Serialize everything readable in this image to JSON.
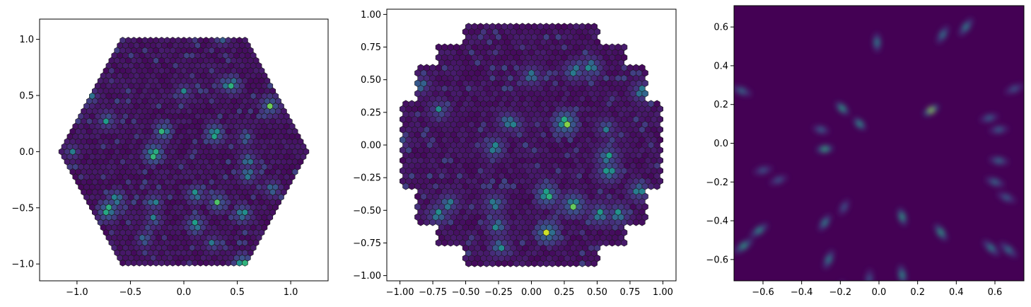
{
  "chart_data": [
    {
      "type": "hexbin",
      "layout": "hexagon",
      "xlim": [
        -1.35,
        1.35
      ],
      "ylim": [
        -1.15,
        1.18
      ],
      "xticks": [
        -1.0,
        -0.5,
        0.0,
        0.5,
        1.0
      ],
      "xtick_labels": [
        "−1.0",
        "−0.5",
        "0.0",
        "0.5",
        "1.0"
      ],
      "yticks": [
        -1.0,
        -0.5,
        0.0,
        0.5,
        1.0
      ],
      "ytick_labels": [
        "−1.0",
        "−0.5",
        "0.0",
        "0.5",
        "1.0"
      ],
      "colormap": "viridis",
      "grid": false,
      "hotspots": [
        {
          "x": -0.28,
          "y": -0.02,
          "v": 1.0
        },
        {
          "x": -0.71,
          "y": -0.52,
          "v": 0.95
        },
        {
          "x": 0.55,
          "y": -1.0,
          "v": 0.92
        },
        {
          "x": 0.29,
          "y": 0.16,
          "v": 0.85
        },
        {
          "x": -0.19,
          "y": 0.18,
          "v": 0.8
        },
        {
          "x": 0.81,
          "y": 0.41,
          "v": 0.8
        },
        {
          "x": 0.45,
          "y": 0.6,
          "v": 0.75
        },
        {
          "x": 0.32,
          "y": -0.45,
          "v": 0.75
        },
        {
          "x": 0.11,
          "y": -0.65,
          "v": 0.72
        },
        {
          "x": 0.55,
          "y": -0.55,
          "v": 0.7
        },
        {
          "x": -0.63,
          "y": -0.42,
          "v": 0.65
        },
        {
          "x": 0.11,
          "y": -0.38,
          "v": 0.65
        },
        {
          "x": -0.72,
          "y": 0.28,
          "v": 0.6
        },
        {
          "x": 0.6,
          "y": -0.2,
          "v": 0.6
        },
        {
          "x": -0.28,
          "y": -0.45,
          "v": 0.55
        },
        {
          "x": 0.36,
          "y": 1.02,
          "v": 0.5
        },
        {
          "x": 0.0,
          "y": 0.53,
          "v": 0.5
        },
        {
          "x": 0.6,
          "y": -0.08,
          "v": 0.55
        },
        {
          "x": -0.88,
          "y": 0.49,
          "v": 0.5
        },
        {
          "x": -1.05,
          "y": 0.0,
          "v": 0.45
        },
        {
          "x": -0.28,
          "y": -0.6,
          "v": 0.5
        },
        {
          "x": 0.83,
          "y": -0.33,
          "v": 0.5
        },
        {
          "x": 0.27,
          "y": -0.82,
          "v": 0.45
        },
        {
          "x": -0.72,
          "y": -0.88,
          "v": 0.45
        },
        {
          "x": 0.38,
          "y": 0.6,
          "v": 0.45
        },
        {
          "x": 0.58,
          "y": 0.12,
          "v": 0.45
        },
        {
          "x": -0.37,
          "y": -0.78,
          "v": 0.45
        }
      ]
    },
    {
      "type": "hexbin",
      "layout": "octagon",
      "xlim": [
        -1.1,
        1.1
      ],
      "ylim": [
        -1.04,
        1.04
      ],
      "xticks": [
        -1.0,
        -0.75,
        -0.5,
        -0.25,
        0.0,
        0.25,
        0.5,
        0.75,
        1.0
      ],
      "xtick_labels": [
        "−1.00",
        "−0.75",
        "−0.50",
        "−0.25",
        "0.00",
        "0.25",
        "0.50",
        "0.75",
        "1.00"
      ],
      "yticks": [
        -1.0,
        -0.75,
        -0.5,
        -0.25,
        0.0,
        0.25,
        0.5,
        0.75,
        1.0
      ],
      "ytick_labels": [
        "−1.00",
        "−0.75",
        "−0.50",
        "−0.25",
        "0.00",
        "0.25",
        "0.50",
        "0.75",
        "1.00"
      ],
      "colormap": "viridis",
      "grid": false,
      "hotspots": [
        {
          "x": 0.26,
          "y": 0.17,
          "v": 1.0
        },
        {
          "x": 0.12,
          "y": -0.67,
          "v": 0.95
        },
        {
          "x": 0.12,
          "y": -0.38,
          "v": 0.85
        },
        {
          "x": 0.32,
          "y": -0.46,
          "v": 0.85
        },
        {
          "x": 0.59,
          "y": -0.2,
          "v": 0.7
        },
        {
          "x": 0.58,
          "y": -0.09,
          "v": 0.65
        },
        {
          "x": 0.52,
          "y": -0.53,
          "v": 0.65
        },
        {
          "x": 0.66,
          "y": -0.53,
          "v": 0.62
        },
        {
          "x": 0.82,
          "y": -0.35,
          "v": 0.6
        },
        {
          "x": 0.45,
          "y": 0.6,
          "v": 0.6
        },
        {
          "x": 0.33,
          "y": 0.57,
          "v": 0.55
        },
        {
          "x": 0.84,
          "y": 0.41,
          "v": 0.55
        },
        {
          "x": 0.0,
          "y": 0.53,
          "v": 0.5
        },
        {
          "x": -0.18,
          "y": 0.18,
          "v": 0.5
        },
        {
          "x": -0.28,
          "y": -0.02,
          "v": 0.6
        },
        {
          "x": -0.71,
          "y": -0.53,
          "v": 0.6
        },
        {
          "x": -0.63,
          "y": -0.45,
          "v": 0.55
        },
        {
          "x": -0.28,
          "y": -0.45,
          "v": 0.55
        },
        {
          "x": -0.26,
          "y": -0.62,
          "v": 0.55
        },
        {
          "x": -0.24,
          "y": -0.78,
          "v": 0.55
        },
        {
          "x": -0.7,
          "y": 0.27,
          "v": 0.5
        },
        {
          "x": -0.84,
          "y": 0.46,
          "v": 0.45
        },
        {
          "x": -1.0,
          "y": 0.02,
          "v": 0.4
        },
        {
          "x": 0.57,
          "y": 0.13,
          "v": 0.45
        },
        {
          "x": -0.13,
          "y": 0.16,
          "v": 0.45
        }
      ]
    },
    {
      "type": "heatmap",
      "xlim": [
        -0.75,
        0.75
      ],
      "ylim": [
        -0.71,
        0.71
      ],
      "xticks": [
        -0.6,
        -0.4,
        -0.2,
        0.0,
        0.2,
        0.4,
        0.6
      ],
      "xtick_labels": [
        "−0.6",
        "−0.4",
        "−0.2",
        "0.0",
        "0.2",
        "0.4",
        "0.6"
      ],
      "yticks": [
        -0.6,
        -0.4,
        -0.2,
        0.0,
        0.2,
        0.4,
        0.6
      ],
      "ytick_labels": [
        "−0.6",
        "−0.4",
        "−0.2",
        "0.0",
        "0.2",
        "0.4",
        "0.6"
      ],
      "colormap": "viridis",
      "background": "#440154",
      "grid": false,
      "blobs": [
        {
          "x": 0.27,
          "y": 0.17,
          "v": 0.85
        },
        {
          "x": -0.28,
          "y": -0.03,
          "v": 0.65
        },
        {
          "x": -0.19,
          "y": 0.18,
          "v": 0.6
        },
        {
          "x": -0.1,
          "y": 0.1,
          "v": 0.55
        },
        {
          "x": 0.12,
          "y": -0.38,
          "v": 0.6
        },
        {
          "x": 0.32,
          "y": -0.46,
          "v": 0.6
        },
        {
          "x": 0.12,
          "y": -0.68,
          "v": 0.55
        },
        {
          "x": -0.7,
          "y": -0.53,
          "v": 0.6
        },
        {
          "x": -0.62,
          "y": -0.45,
          "v": 0.55
        },
        {
          "x": -0.28,
          "y": -0.41,
          "v": 0.5
        },
        {
          "x": -0.26,
          "y": -0.6,
          "v": 0.5
        },
        {
          "x": -0.01,
          "y": 0.52,
          "v": 0.5
        },
        {
          "x": 0.45,
          "y": 0.6,
          "v": 0.5
        },
        {
          "x": 0.33,
          "y": 0.56,
          "v": 0.45
        },
        {
          "x": 0.58,
          "y": -0.54,
          "v": 0.5
        },
        {
          "x": 0.67,
          "y": -0.55,
          "v": 0.45
        },
        {
          "x": 0.6,
          "y": -0.2,
          "v": 0.4
        },
        {
          "x": 0.62,
          "y": -0.09,
          "v": 0.4
        },
        {
          "x": -0.71,
          "y": 0.27,
          "v": 0.4
        },
        {
          "x": -0.3,
          "y": 0.07,
          "v": 0.35
        },
        {
          "x": 0.57,
          "y": 0.13,
          "v": 0.35
        },
        {
          "x": 0.62,
          "y": 0.07,
          "v": 0.35
        },
        {
          "x": 0.66,
          "y": -0.28,
          "v": 0.35
        },
        {
          "x": -0.18,
          "y": -0.33,
          "v": 0.3
        },
        {
          "x": -0.52,
          "y": -0.19,
          "v": 0.3
        },
        {
          "x": -0.6,
          "y": -0.14,
          "v": 0.3
        },
        {
          "x": -0.2,
          "y": -0.76,
          "v": 0.3
        },
        {
          "x": 0.7,
          "y": 0.28,
          "v": 0.3
        },
        {
          "x": -0.05,
          "y": -0.7,
          "v": 0.3
        }
      ]
    }
  ]
}
